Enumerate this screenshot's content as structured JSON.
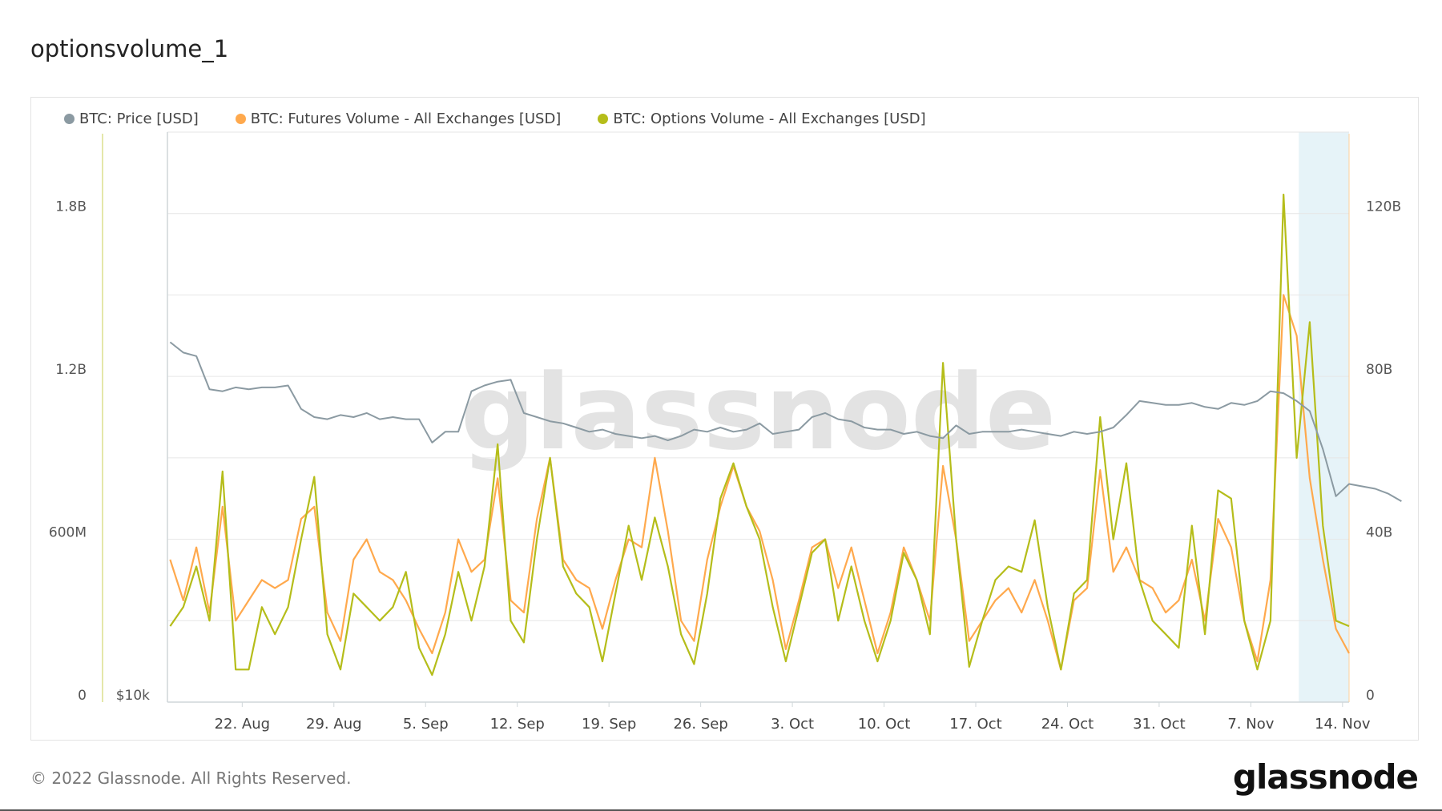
{
  "title": "optionsvolume_1",
  "footer": {
    "copyright": "© 2022 Glassnode. All Rights Reserved.",
    "logo": "glassnode"
  },
  "watermark": "glassnode",
  "chart_data": {
    "type": "line",
    "title": "optionsvolume_1",
    "x_range": [
      "2022-08-16T07:00",
      "2022-11-14T12:00"
    ],
    "x_start_date": "2022-08-16",
    "x_ticks": [
      "22. Aug",
      "29. Aug",
      "5. Sep",
      "12. Sep",
      "19. Sep",
      "26. Sep",
      "3. Oct",
      "10. Oct",
      "17. Oct",
      "24. Oct",
      "31. Oct",
      "7. Nov",
      "14. Nov"
    ],
    "x_tick_dates": [
      "2022-08-22",
      "2022-08-29",
      "2022-09-05",
      "2022-09-12",
      "2022-09-19",
      "2022-09-26",
      "2022-10-03",
      "2022-10-10",
      "2022-10-17",
      "2022-10-24",
      "2022-10-31",
      "2022-11-07",
      "2022-11-14"
    ],
    "left_axis": {
      "ticks": [
        "0",
        "600M",
        "1.2B",
        "1.8B"
      ],
      "tick_values": [
        0,
        0.6,
        1.2,
        1.8
      ],
      "range": [
        0,
        2.1
      ],
      "unit": "B USD",
      "color": "#c8cf55"
    },
    "price_axis": {
      "ticks": [
        "$10k"
      ],
      "scale": "log",
      "range": [
        10000,
        40000
      ]
    },
    "right_axis": {
      "ticks": [
        "0",
        "40B",
        "80B",
        "120B"
      ],
      "tick_values": [
        0,
        40,
        80,
        120
      ],
      "range": [
        0,
        140
      ],
      "unit": "B USD"
    },
    "grid": true,
    "legend_position": "top-left",
    "highlight_band": {
      "from": "2022-11-10T16:00",
      "to": "2022-11-14T12:00",
      "color": "#e6f3f8"
    },
    "series": [
      {
        "name": "BTC: Price [USD]",
        "axis": "price",
        "color": "#8b9aa2",
        "values": [
          24000,
          23400,
          23200,
          21400,
          21300,
          21500,
          21400,
          21500,
          21500,
          21600,
          20400,
          20000,
          19900,
          20100,
          20000,
          20200,
          19900,
          20000,
          19900,
          19900,
          18800,
          19300,
          19300,
          21300,
          21600,
          21800,
          21900,
          20200,
          20000,
          19800,
          19700,
          19500,
          19300,
          19400,
          19200,
          19100,
          19000,
          19100,
          18900,
          19100,
          19400,
          19300,
          19500,
          19300,
          19400,
          19700,
          19200,
          19300,
          19400,
          20000,
          20200,
          19900,
          19800,
          19500,
          19400,
          19400,
          19200,
          19300,
          19100,
          19000,
          19600,
          19200,
          19300,
          19300,
          19300,
          19400,
          19300,
          19200,
          19100,
          19300,
          19200,
          19300,
          19500,
          20100,
          20800,
          20700,
          20600,
          20600,
          20700,
          20500,
          20400,
          20700,
          20600,
          20800,
          21300,
          21200,
          20800,
          20300,
          18500,
          16500,
          17000,
          16900,
          16800,
          16600,
          16300
        ]
      },
      {
        "name": "BTC: Futures Volume - All Exchanges [USD]",
        "axis": "right",
        "color": "#ffa94d",
        "values": [
          35,
          25,
          38,
          22,
          48,
          20,
          25,
          30,
          28,
          30,
          45,
          48,
          22,
          15,
          35,
          40,
          32,
          30,
          25,
          18,
          12,
          22,
          40,
          32,
          35,
          55,
          25,
          22,
          45,
          60,
          35,
          30,
          28,
          18,
          30,
          40,
          38,
          60,
          42,
          20,
          15,
          35,
          48,
          58,
          48,
          42,
          30,
          13,
          25,
          38,
          40,
          28,
          38,
          25,
          12,
          22,
          38,
          30,
          20,
          58,
          40,
          15,
          20,
          25,
          28,
          22,
          30,
          20,
          8,
          25,
          28,
          57,
          32,
          38,
          30,
          28,
          22,
          25,
          35,
          20,
          45,
          38,
          20,
          10,
          30,
          100,
          90,
          55,
          35,
          18,
          12
        ]
      },
      {
        "name": "BTC: Options Volume - All Exchanges [USD]",
        "axis": "left",
        "color": "#b5bd1a",
        "values": [
          0.28,
          0.35,
          0.5,
          0.3,
          0.85,
          0.12,
          0.12,
          0.35,
          0.25,
          0.35,
          0.6,
          0.83,
          0.25,
          0.12,
          0.4,
          0.35,
          0.3,
          0.35,
          0.48,
          0.2,
          0.1,
          0.25,
          0.48,
          0.3,
          0.5,
          0.95,
          0.3,
          0.22,
          0.6,
          0.9,
          0.5,
          0.4,
          0.35,
          0.15,
          0.4,
          0.65,
          0.45,
          0.68,
          0.5,
          0.25,
          0.14,
          0.4,
          0.75,
          0.88,
          0.72,
          0.6,
          0.35,
          0.15,
          0.35,
          0.55,
          0.6,
          0.3,
          0.5,
          0.3,
          0.15,
          0.3,
          0.55,
          0.45,
          0.25,
          1.25,
          0.6,
          0.13,
          0.3,
          0.45,
          0.5,
          0.48,
          0.67,
          0.35,
          0.12,
          0.4,
          0.45,
          1.05,
          0.6,
          0.88,
          0.45,
          0.3,
          0.25,
          0.2,
          0.65,
          0.25,
          0.78,
          0.75,
          0.3,
          0.12,
          0.3,
          1.87,
          0.9,
          1.4,
          0.65,
          0.3,
          0.28
        ]
      }
    ]
  }
}
